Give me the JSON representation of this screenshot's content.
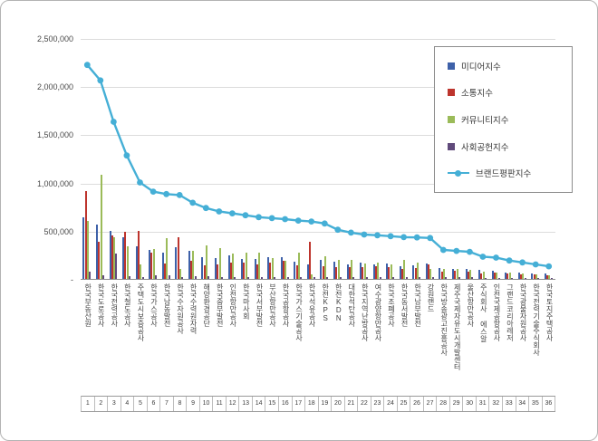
{
  "chart_data": {
    "type": "bar",
    "title": "",
    "xlabel": "",
    "ylabel": "",
    "ylim": [
      0,
      2500000
    ],
    "grid": true,
    "legend_position": "upper-right",
    "y_ticks": [
      {
        "value": 0,
        "label": "-"
      },
      {
        "value": 500000,
        "label": "500,000"
      },
      {
        "value": 1000000,
        "label": "1,000,000"
      },
      {
        "value": 1500000,
        "label": "1,500,000"
      },
      {
        "value": 2000000,
        "label": "2,000,000"
      },
      {
        "value": 2500000,
        "label": "2,500,000"
      }
    ],
    "categories": [
      "한국부동산원",
      "한국도로공사",
      "한국전력공사",
      "한국철도공사",
      "주택도시보증공사",
      "한국가스공사",
      "한국남동발전",
      "한국수자원공사",
      "한국수력원자력",
      "해양환경공단",
      "한국중부발전",
      "인천항만공사",
      "한국마사회",
      "한국서부발전",
      "부산항만공사",
      "한국공항공사",
      "한국가스기술공사",
      "한국석유공사",
      "한전KPS",
      "한전KDN",
      "대한석탄공사",
      "한국지역난방공사",
      "여수광양항만공사",
      "한국조폐공사",
      "한국동서발전",
      "한국남부발전",
      "강원랜드",
      "한국방송광고진흥공사",
      "제주국제자유도시개발센터",
      "울산항만공사",
      "주식회사 에스알",
      "인천국제공항공사",
      "그랜드코리아레저",
      "한국광물자원공사",
      "한국전력기술주식회사",
      "한국토지주택공사"
    ],
    "index_labels": [
      "1",
      "2",
      "3",
      "4",
      "5",
      "6",
      "7",
      "8",
      "9",
      "10",
      "11",
      "12",
      "13",
      "14",
      "15",
      "16",
      "17",
      "18",
      "19",
      "20",
      "21",
      "22",
      "23",
      "24",
      "25",
      "26",
      "27",
      "28",
      "29",
      "30",
      "31",
      "32",
      "33",
      "34",
      "35",
      "36"
    ],
    "series": [
      {
        "key": "media",
        "name": "미디어지수",
        "type": "bar",
        "color": "#3E61A9",
        "values": [
          640000,
          560000,
          500000,
          430000,
          340000,
          300000,
          270000,
          330000,
          290000,
          230000,
          220000,
          240000,
          210000,
          210000,
          230000,
          230000,
          180000,
          150000,
          200000,
          180000,
          150000,
          170000,
          150000,
          160000,
          130000,
          140000,
          160000,
          110000,
          100000,
          100000,
          90000,
          85000,
          70000,
          65000,
          60000,
          55000
        ]
      },
      {
        "key": "communication",
        "name": "소통지수",
        "type": "bar",
        "color": "#BD342D",
        "values": [
          910000,
          390000,
          450000,
          490000,
          500000,
          270000,
          160000,
          430000,
          190000,
          140000,
          150000,
          170000,
          170000,
          150000,
          170000,
          190000,
          140000,
          390000,
          130000,
          120000,
          120000,
          120000,
          130000,
          120000,
          100000,
          110000,
          150000,
          80000,
          85000,
          80000,
          60000,
          65000,
          55000,
          50000,
          45000,
          40000
        ]
      },
      {
        "key": "community",
        "name": "커뮤니티지수",
        "type": "bar",
        "color": "#9BBB59",
        "values": [
          600000,
          1080000,
          430000,
          340000,
          150000,
          310000,
          420000,
          100000,
          290000,
          350000,
          320000,
          260000,
          270000,
          270000,
          220000,
          190000,
          275000,
          50000,
          235000,
          200000,
          200000,
          160000,
          165000,
          155000,
          195000,
          170000,
          105000,
          105000,
          100000,
          95000,
          78000,
          70000,
          65000,
          55000,
          45000,
          37000
        ]
      },
      {
        "key": "social",
        "name": "사회공헌지수",
        "type": "bar",
        "color": "#604A7B",
        "values": [
          80000,
          40000,
          260000,
          30000,
          20000,
          35000,
          40000,
          20000,
          30000,
          25000,
          20000,
          20000,
          20000,
          20000,
          20000,
          20000,
          20000,
          15000,
          20000,
          20000,
          20000,
          20000,
          17000,
          18000,
          18000,
          20000,
          19000,
          15000,
          15000,
          15000,
          12000,
          10000,
          10000,
          10000,
          10000,
          8000
        ]
      },
      {
        "key": "brand",
        "name": "브랜드평판지수",
        "type": "line",
        "color": "#45AFD6",
        "values": [
          2230000,
          2070000,
          1640000,
          1290000,
          1010000,
          915000,
          890000,
          880000,
          800000,
          745000,
          710000,
          690000,
          670000,
          650000,
          640000,
          630000,
          615000,
          605000,
          585000,
          520000,
          490000,
          470000,
          462000,
          453000,
          443000,
          440000,
          434000,
          310000,
          300000,
          290000,
          240000,
          230000,
          200000,
          180000,
          160000,
          140000
        ]
      }
    ]
  }
}
